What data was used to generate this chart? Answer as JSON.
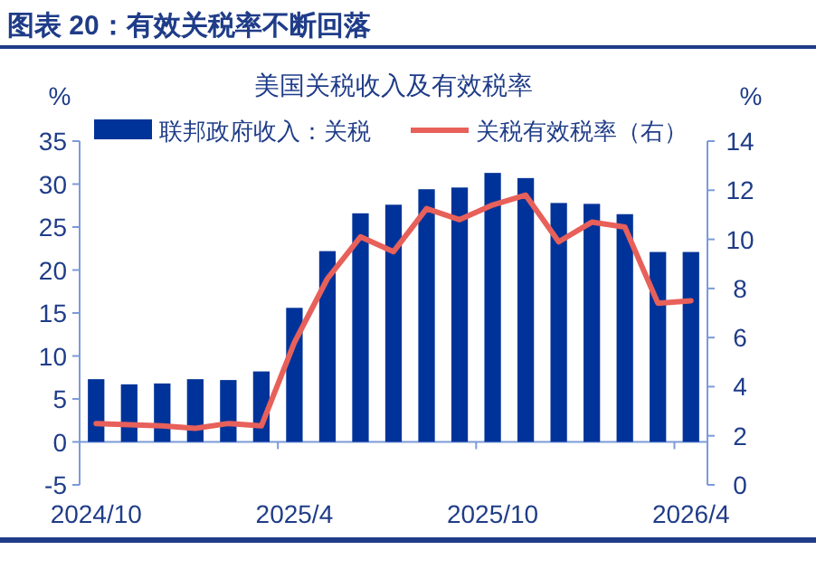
{
  "chart_data": {
    "type": "bar",
    "title": "图表 20：有效关税率不断回落",
    "subtitle": "美国关税收入及有效税率",
    "categories": [
      "2024/10",
      null,
      null,
      null,
      null,
      null,
      "2025/4",
      null,
      null,
      null,
      null,
      null,
      "2025/10",
      null,
      null,
      null,
      null,
      null,
      "2026/4"
    ],
    "series": [
      {
        "name": "联邦政府收入：关税",
        "color": "#003399",
        "values": [
          7.3,
          6.7,
          6.8,
          7.3,
          7.2,
          8.2,
          15.6,
          22.2,
          26.6,
          27.6,
          29.4,
          29.6,
          31.3,
          30.7,
          27.8,
          27.7,
          26.5,
          22.1,
          22.1
        ]
      },
      {
        "name": "关税有效税率（右）",
        "type": "line",
        "axis": "y2",
        "color": "#e8605a",
        "values": [
          2.5,
          2.45,
          2.4,
          2.3,
          2.5,
          2.4,
          5.8,
          8.4,
          10.1,
          9.5,
          11.25,
          10.8,
          11.4,
          11.8,
          9.9,
          10.7,
          10.5,
          7.4,
          7.5
        ]
      }
    ],
    "ylabel": "%",
    "y2label": "%",
    "ylim": [
      -5,
      35
    ],
    "yticks": [
      -5,
      0,
      5,
      10,
      15,
      20,
      25,
      30,
      35
    ],
    "y2lim": [
      0,
      14
    ],
    "y2ticks": [
      0,
      2,
      4,
      6,
      8,
      10,
      12,
      14
    ],
    "legend": "top",
    "grid": false
  }
}
